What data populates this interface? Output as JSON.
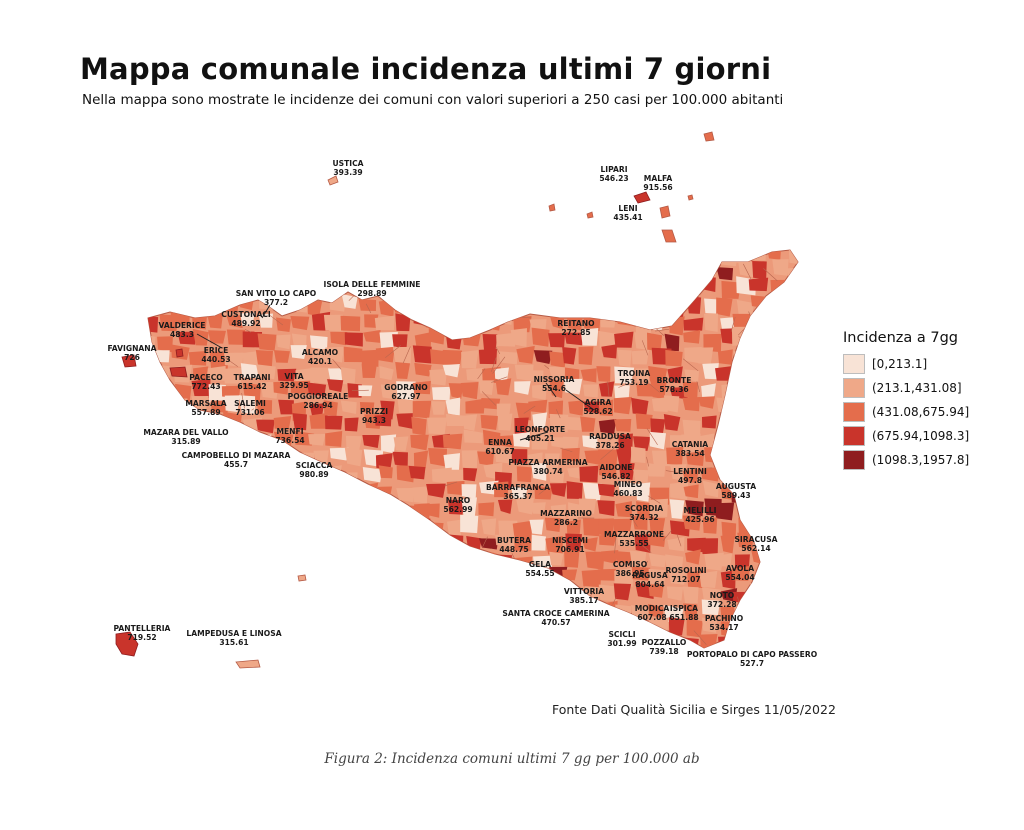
{
  "title": "Mappa comunale incidenza ultimi 7 giorni",
  "subtitle": "Nella mappa sono mostrate le incidenze dei comuni con valori superiori a 250 casi per 100.000 abitanti",
  "legend": {
    "title": "Incidenza a 7gg",
    "classes": [
      {
        "label": "[0,213.1]",
        "color": "#f8e3d6"
      },
      {
        "label": "(213.1,431.08]",
        "color": "#efa888"
      },
      {
        "label": "(431.08,675.94]",
        "color": "#e46d4c"
      },
      {
        "label": "(675.94,1098.3]",
        "color": "#c9342b"
      },
      {
        "label": "(1098.3,1957.8]",
        "color": "#8f1d1f"
      }
    ]
  },
  "towns": [
    {
      "name": "USTICA",
      "value": "393.39"
    },
    {
      "name": "LIPARI",
      "value": "546.23"
    },
    {
      "name": "MALFA",
      "value": "915.56"
    },
    {
      "name": "LENI",
      "value": "435.41"
    },
    {
      "name": "ISOLA DELLE FEMMINE",
      "value": "298.89"
    },
    {
      "name": "SAN VITO LO CAPO",
      "value": "377.2"
    },
    {
      "name": "CUSTONACI",
      "value": "489.92"
    },
    {
      "name": "VALDERICE",
      "value": "483.3"
    },
    {
      "name": "ERICE",
      "value": "440.53"
    },
    {
      "name": "FAVIGNANA",
      "value": "726"
    },
    {
      "name": "PACECO",
      "value": "772.43"
    },
    {
      "name": "TRAPANI",
      "value": "615.42"
    },
    {
      "name": "ALCAMO",
      "value": "420.1"
    },
    {
      "name": "VITA",
      "value": "329.95"
    },
    {
      "name": "POGGIOREALE",
      "value": "286.94"
    },
    {
      "name": "MARSALA",
      "value": "557.89"
    },
    {
      "name": "SALEMI",
      "value": "731.06"
    },
    {
      "name": "GODRANO",
      "value": "627.97"
    },
    {
      "name": "PRIZZI",
      "value": "943.3"
    },
    {
      "name": "MAZARA DEL VALLO",
      "value": "315.89"
    },
    {
      "name": "MENFI",
      "value": "736.54"
    },
    {
      "name": "CAMPOBELLO DI MAZARA",
      "value": "455.7"
    },
    {
      "name": "SCIACCA",
      "value": "980.89"
    },
    {
      "name": "REITANO",
      "value": "272.85"
    },
    {
      "name": "NISSORIA",
      "value": "554.6"
    },
    {
      "name": "TROINA",
      "value": "753.19"
    },
    {
      "name": "BRONTE",
      "value": "578.36"
    },
    {
      "name": "AGIRA",
      "value": "528.62"
    },
    {
      "name": "LEONFORTE",
      "value": "405.21"
    },
    {
      "name": "ENNA",
      "value": "610.67"
    },
    {
      "name": "RADDUSA",
      "value": "378.26"
    },
    {
      "name": "PIAZZA ARMERINA",
      "value": "380.74"
    },
    {
      "name": "CATANIA",
      "value": "383.54"
    },
    {
      "name": "AIDONE",
      "value": "546.82"
    },
    {
      "name": "LENTINI",
      "value": "497.8"
    },
    {
      "name": "BARRAFRANCA",
      "value": "365.37"
    },
    {
      "name": "MINEO",
      "value": "460.83"
    },
    {
      "name": "AUGUSTA",
      "value": "589.43"
    },
    {
      "name": "NARO",
      "value": "562.99"
    },
    {
      "name": "MAZZARINO",
      "value": "286.2"
    },
    {
      "name": "SCORDIA",
      "value": "374.32"
    },
    {
      "name": "MELILLI",
      "value": "425.96"
    },
    {
      "name": "MAZZARRONE",
      "value": "535.55"
    },
    {
      "name": "BUTERA",
      "value": "448.75"
    },
    {
      "name": "NISCEMI",
      "value": "706.91"
    },
    {
      "name": "SIRACUSA",
      "value": "562.14"
    },
    {
      "name": "GELA",
      "value": "554.55"
    },
    {
      "name": "COMISO",
      "value": "386.95"
    },
    {
      "name": "RAGUSA",
      "value": "804.64"
    },
    {
      "name": "ROSOLINI",
      "value": "712.07"
    },
    {
      "name": "AVOLA",
      "value": "554.04"
    },
    {
      "name": "VITTORIA",
      "value": "385.17"
    },
    {
      "name": "NOTO",
      "value": "372.28"
    },
    {
      "name": "SANTA CROCE CAMERINA",
      "value": "470.57"
    },
    {
      "name": "MODICA",
      "value": "607.08"
    },
    {
      "name": "ISPICA",
      "value": "651.88"
    },
    {
      "name": "PACHINO",
      "value": "534.17"
    },
    {
      "name": "PANTELLERIA",
      "value": "719.52"
    },
    {
      "name": "LAMPEDUSA E LINOSA",
      "value": "315.61"
    },
    {
      "name": "SCICLI",
      "value": "301.99"
    },
    {
      "name": "POZZALLO",
      "value": "739.18"
    },
    {
      "name": "PORTOPALO DI CAPO PASSERO",
      "value": "527.7"
    }
  ],
  "source": "Fonte Dati Qualità Sicilia e Sirges 11/05/2022",
  "caption": "Figura 2: Incidenza comuni ultimi 7 gg per 100.000 ab"
}
